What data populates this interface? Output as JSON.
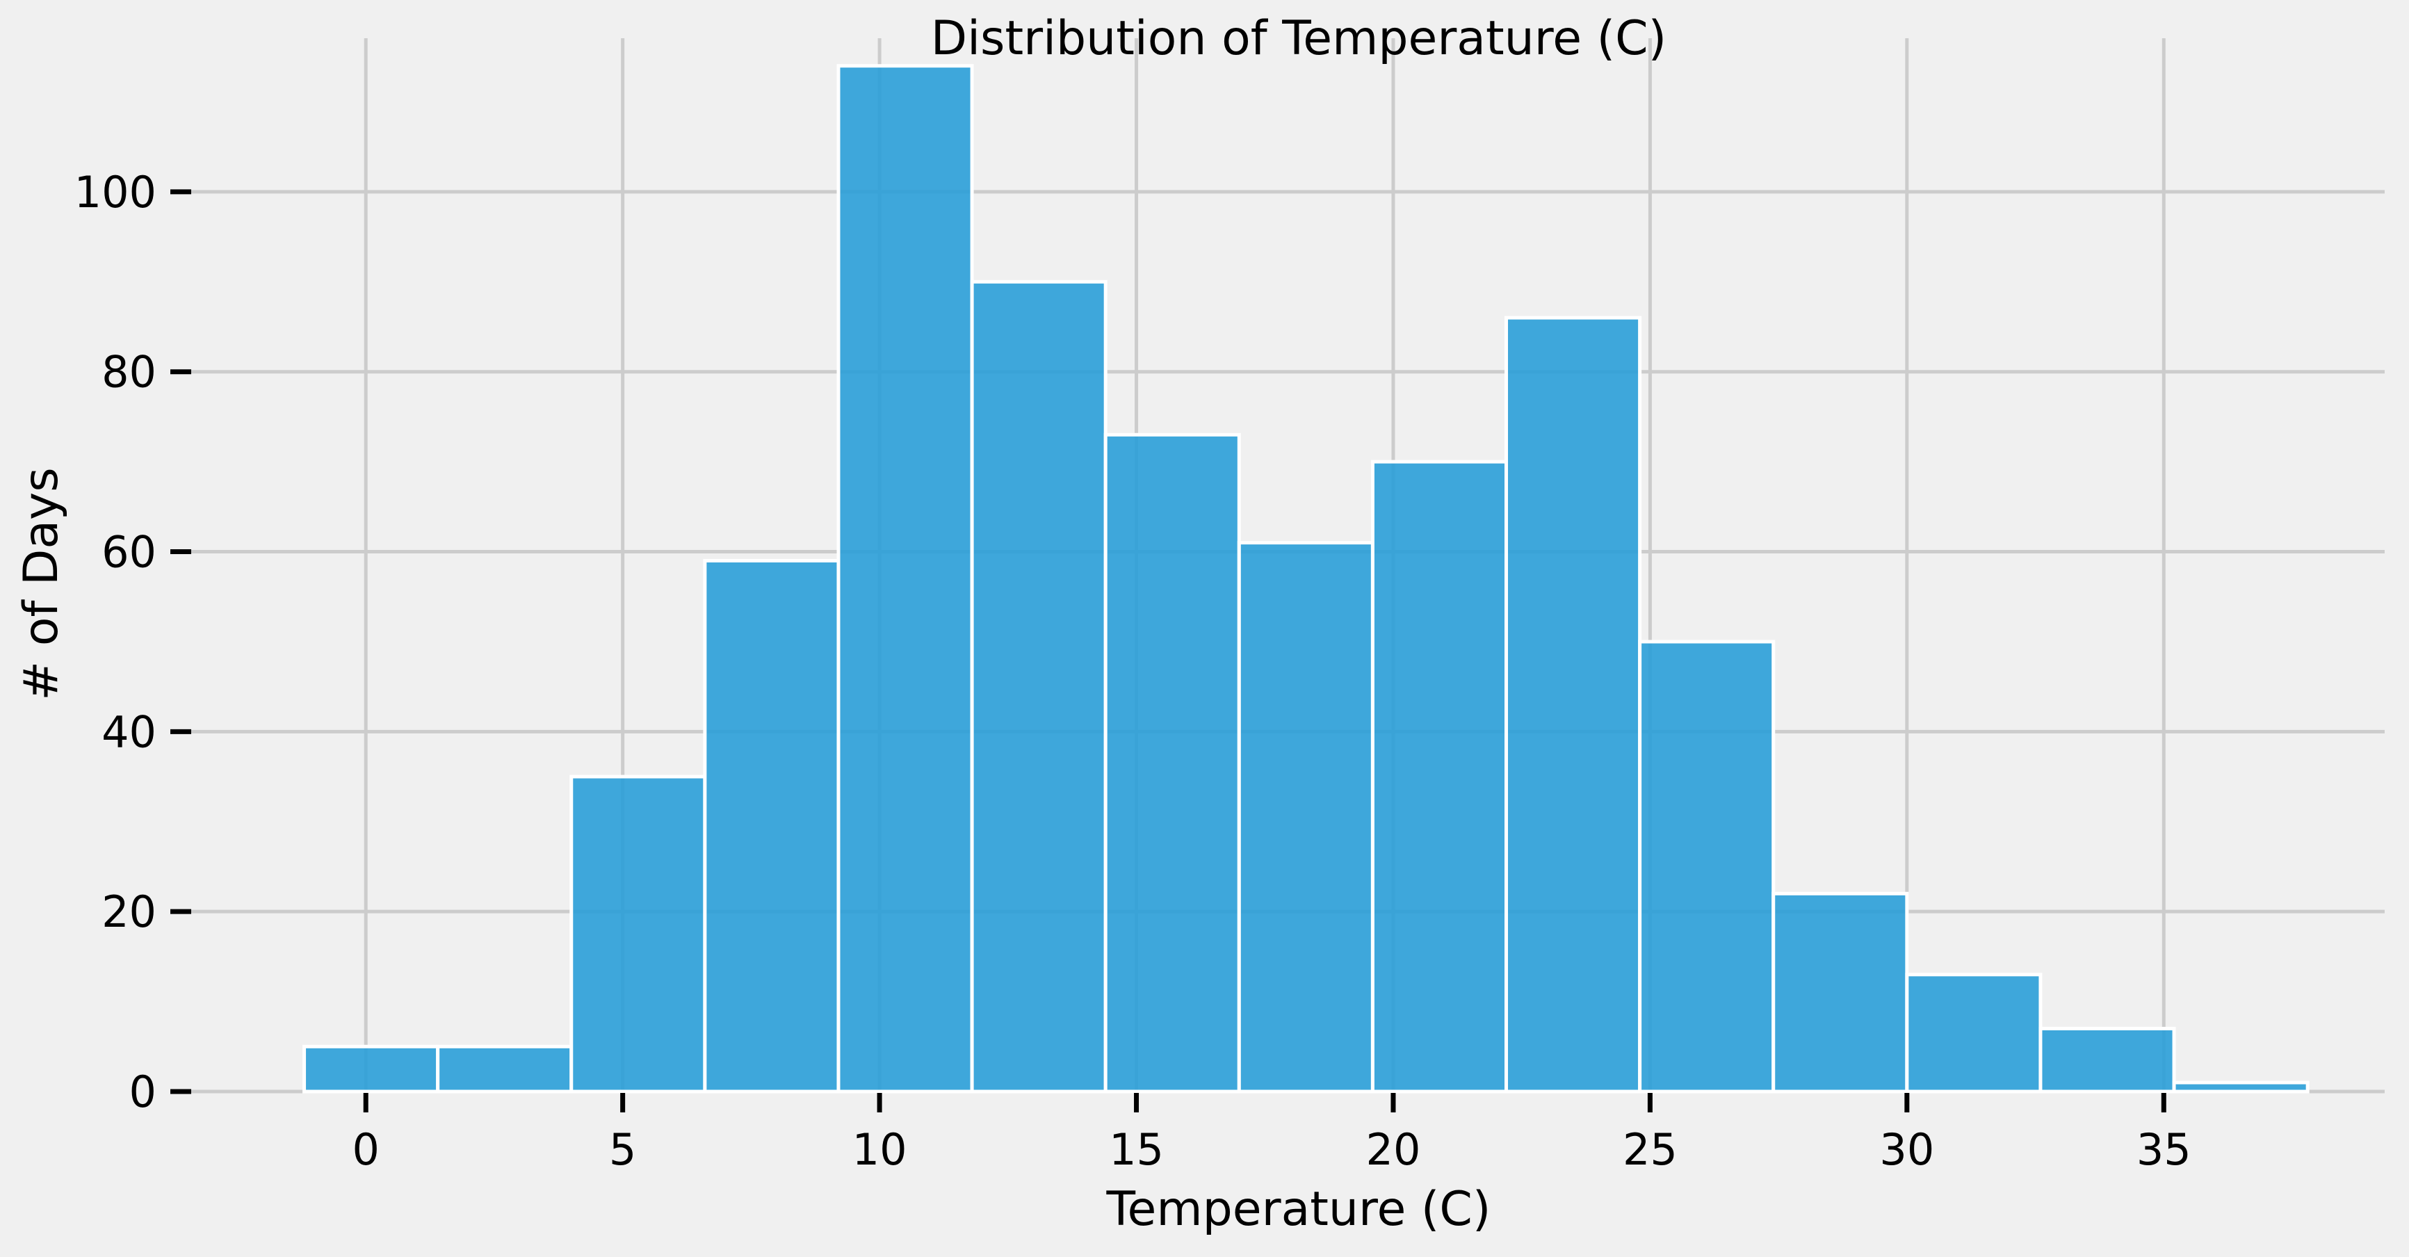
{
  "chart_data": {
    "type": "bar",
    "title": "Distribution of Temperature (C)",
    "xlabel": "Temperature (C)",
    "ylabel": "# of Days",
    "xlim": [
      -3.4,
      39.3
    ],
    "ylim": [
      0,
      119
    ],
    "x_ticks": [
      0,
      5,
      10,
      15,
      20,
      25,
      30,
      35
    ],
    "y_ticks": [
      0,
      20,
      40,
      60,
      80,
      100
    ],
    "grid": true,
    "bar_color": "#2a9fd8",
    "bins": [
      {
        "x0": -1.2,
        "x1": 1.4,
        "count": 5
      },
      {
        "x0": 1.4,
        "x1": 4.0,
        "count": 5
      },
      {
        "x0": 4.0,
        "x1": 6.6,
        "count": 35
      },
      {
        "x0": 6.6,
        "x1": 9.2,
        "count": 59
      },
      {
        "x0": 9.2,
        "x1": 11.8,
        "count": 114
      },
      {
        "x0": 11.8,
        "x1": 14.4,
        "count": 90
      },
      {
        "x0": 14.4,
        "x1": 17.0,
        "count": 73
      },
      {
        "x0": 17.0,
        "x1": 19.6,
        "count": 61
      },
      {
        "x0": 19.6,
        "x1": 22.2,
        "count": 70
      },
      {
        "x0": 22.2,
        "x1": 24.8,
        "count": 86
      },
      {
        "x0": 24.8,
        "x1": 27.4,
        "count": 50
      },
      {
        "x0": 27.4,
        "x1": 30.0,
        "count": 22
      },
      {
        "x0": 30.0,
        "x1": 32.6,
        "count": 13
      },
      {
        "x0": 32.6,
        "x1": 35.2,
        "count": 7
      },
      {
        "x0": 35.2,
        "x1": 37.8,
        "count": 1
      }
    ]
  }
}
